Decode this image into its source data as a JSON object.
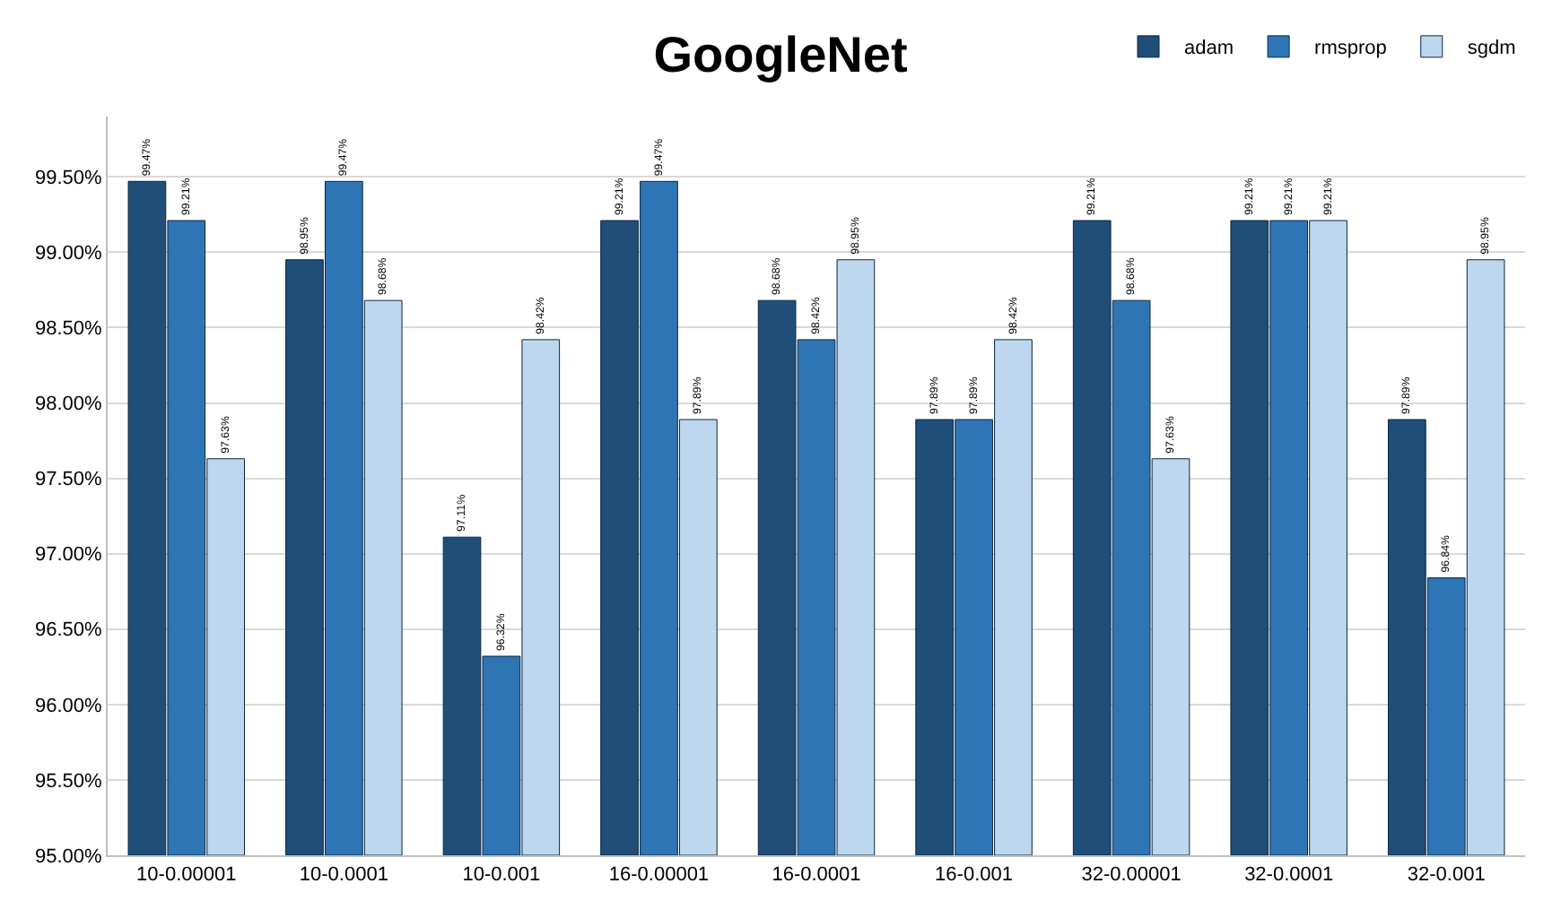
{
  "chart_data": {
    "type": "bar",
    "title": "GoogleNet",
    "categories": [
      "10-0.00001",
      "10-0.0001",
      "10-0.001",
      "16-0.00001",
      "16-0.0001",
      "16-0.001",
      "32-0.00001",
      "32-0.0001",
      "32-0.001"
    ],
    "series": [
      {
        "name": "adam",
        "color": "#1f4e79",
        "values": [
          99.47,
          98.95,
          97.11,
          99.21,
          98.68,
          97.89,
          99.21,
          99.21,
          97.89
        ],
        "value_labels": [
          "99.47%",
          "98.95%",
          "97.11%",
          "99.21%",
          "98.68%",
          "97.89%",
          "99.21%",
          "99.21%",
          "97.89%"
        ]
      },
      {
        "name": "rmsprop",
        "color": "#2e75b6",
        "values": [
          99.21,
          99.47,
          96.32,
          99.47,
          98.42,
          97.89,
          98.68,
          99.21,
          96.84
        ],
        "value_labels": [
          "99.21%",
          "99.47%",
          "96.32%",
          "99.47%",
          "98.42%",
          "97.89%",
          "98.68%",
          "99.21%",
          "96.84%"
        ]
      },
      {
        "name": "sgdm",
        "color": "#bdd7ee",
        "values": [
          97.63,
          98.68,
          98.42,
          97.89,
          98.95,
          98.42,
          97.63,
          99.21,
          98.95
        ],
        "value_labels": [
          "97.63%",
          "98.68%",
          "98.42%",
          "97.89%",
          "98.95%",
          "98.42%",
          "97.63%",
          "99.21%",
          "98.95%"
        ]
      }
    ],
    "ylim": [
      95,
      99.9
    ],
    "yticks": [
      {
        "value": 95,
        "label": "95.00%"
      },
      {
        "value": 95.5,
        "label": "95.50%"
      },
      {
        "value": 96,
        "label": "96.00%"
      },
      {
        "value": 96.5,
        "label": "96.50%"
      },
      {
        "value": 97,
        "label": "97.00%"
      },
      {
        "value": 97.5,
        "label": "97.50%"
      },
      {
        "value": 98,
        "label": "98.00%"
      },
      {
        "value": 98.5,
        "label": "98.50%"
      },
      {
        "value": 99,
        "label": "99.00%"
      },
      {
        "value": 99.5,
        "label": "99.50%"
      }
    ],
    "grid": "y",
    "legend": "top right"
  }
}
